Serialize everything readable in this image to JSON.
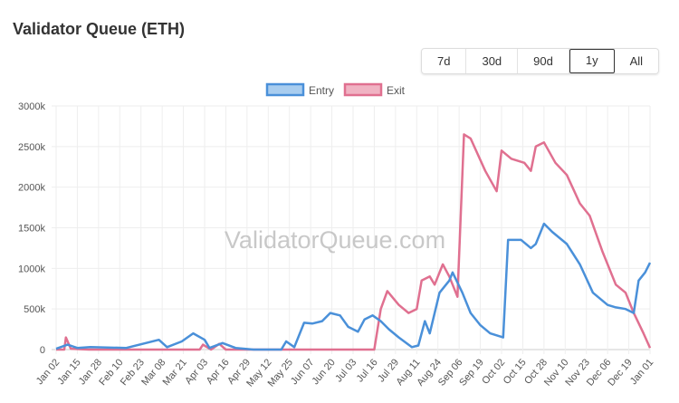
{
  "title": "Validator Queue (ETH)",
  "range_buttons": [
    {
      "label": "7d"
    },
    {
      "label": "30d"
    },
    {
      "label": "90d"
    },
    {
      "label": "1y",
      "active": true
    },
    {
      "label": "All"
    }
  ],
  "watermark": "ValidatorQueue.com",
  "chart_data": {
    "type": "line",
    "ylim": [
      0,
      3000
    ],
    "y_unit_suffix": "k",
    "y_ticks": [
      "0",
      "500k",
      "1000k",
      "1500k",
      "2000k",
      "2500k",
      "3000k"
    ],
    "x_ticks": [
      "Jan 02",
      "Jan 15",
      "Jan 28",
      "Feb 10",
      "Feb 23",
      "Mar 08",
      "Mar 21",
      "Apr 03",
      "Apr 16",
      "Apr 29",
      "May 12",
      "May 25",
      "Jun 07",
      "Jun 20",
      "Jul 03",
      "Jul 16",
      "Jul 29",
      "Aug 11",
      "Aug 24",
      "Sep 06",
      "Sep 19",
      "Oct 02",
      "Oct 15",
      "Oct 28",
      "Nov 10",
      "Nov 23",
      "Dec 06",
      "Dec 19",
      "Jan 01"
    ],
    "grid": true,
    "legend": "top",
    "series": [
      {
        "name": "Entry",
        "color": "#4a90d9",
        "fill": "#a9cdef",
        "points": [
          [
            "Jan 02",
            10
          ],
          [
            "Jan 09",
            60
          ],
          [
            "Jan 15",
            20
          ],
          [
            "Jan 23",
            30
          ],
          [
            "Feb 14",
            20
          ],
          [
            "Mar 06",
            120
          ],
          [
            "Mar 11",
            30
          ],
          [
            "Mar 20",
            100
          ],
          [
            "Mar 27",
            200
          ],
          [
            "Apr 03",
            120
          ],
          [
            "Apr 06",
            20
          ],
          [
            "Apr 14",
            80
          ],
          [
            "Apr 22",
            20
          ],
          [
            "May 03",
            0
          ],
          [
            "May 20",
            0
          ],
          [
            "May 23",
            100
          ],
          [
            "May 28",
            30
          ],
          [
            "Jun 03",
            330
          ],
          [
            "Jun 08",
            320
          ],
          [
            "Jun 14",
            350
          ],
          [
            "Jun 19",
            450
          ],
          [
            "Jun 25",
            420
          ],
          [
            "Jun 30",
            280
          ],
          [
            "Jul 06",
            220
          ],
          [
            "Jul 10",
            370
          ],
          [
            "Jul 15",
            420
          ],
          [
            "Jul 20",
            350
          ],
          [
            "Jul 25",
            250
          ],
          [
            "Jul 31",
            150
          ],
          [
            "Aug 08",
            30
          ],
          [
            "Aug 12",
            50
          ],
          [
            "Aug 16",
            350
          ],
          [
            "Aug 19",
            200
          ],
          [
            "Aug 25",
            700
          ],
          [
            "Aug 31",
            850
          ],
          [
            "Sep 02",
            950
          ],
          [
            "Sep 08",
            700
          ],
          [
            "Sep 13",
            450
          ],
          [
            "Sep 19",
            300
          ],
          [
            "Sep 25",
            200
          ],
          [
            "Oct 03",
            150
          ],
          [
            "Oct 06",
            1350
          ],
          [
            "Oct 14",
            1350
          ],
          [
            "Oct 20",
            1250
          ],
          [
            "Oct 23",
            1300
          ],
          [
            "Oct 28",
            1550
          ],
          [
            "Nov 02",
            1450
          ],
          [
            "Nov 11",
            1300
          ],
          [
            "Nov 19",
            1050
          ],
          [
            "Nov 27",
            700
          ],
          [
            "Dec 06",
            550
          ],
          [
            "Dec 11",
            520
          ],
          [
            "Dec 17",
            500
          ],
          [
            "Dec 22",
            450
          ],
          [
            "Dec 25",
            850
          ],
          [
            "Dec 29",
            950
          ],
          [
            "Jan 01",
            1070
          ]
        ]
      },
      {
        "name": "Exit",
        "color": "#e07090",
        "fill": "#f0b3c3",
        "points": [
          [
            "Jan 02",
            0
          ],
          [
            "Jan 07",
            0
          ],
          [
            "Jan 08",
            150
          ],
          [
            "Jan 11",
            10
          ],
          [
            "Jan 22",
            0
          ],
          [
            "Mar 03",
            0
          ],
          [
            "Mar 31",
            0
          ],
          [
            "Apr 02",
            60
          ],
          [
            "Apr 07",
            0
          ],
          [
            "Apr 12",
            70
          ],
          [
            "Apr 16",
            0
          ],
          [
            "Jul 16",
            0
          ],
          [
            "Jul 20",
            500
          ],
          [
            "Jul 24",
            720
          ],
          [
            "Jul 31",
            550
          ],
          [
            "Aug 06",
            450
          ],
          [
            "Aug 11",
            500
          ],
          [
            "Aug 14",
            850
          ],
          [
            "Aug 19",
            900
          ],
          [
            "Aug 22",
            800
          ],
          [
            "Aug 27",
            1050
          ],
          [
            "Aug 31",
            900
          ],
          [
            "Sep 05",
            650
          ],
          [
            "Sep 09",
            2650
          ],
          [
            "Sep 13",
            2600
          ],
          [
            "Sep 22",
            2200
          ],
          [
            "Sep 29",
            1950
          ],
          [
            "Oct 02",
            2450
          ],
          [
            "Oct 08",
            2350
          ],
          [
            "Oct 16",
            2300
          ],
          [
            "Oct 20",
            2200
          ],
          [
            "Oct 23",
            2500
          ],
          [
            "Oct 28",
            2550
          ],
          [
            "Nov 04",
            2300
          ],
          [
            "Nov 11",
            2150
          ],
          [
            "Nov 19",
            1800
          ],
          [
            "Nov 25",
            1650
          ],
          [
            "Dec 03",
            1200
          ],
          [
            "Dec 11",
            800
          ],
          [
            "Dec 17",
            700
          ],
          [
            "Dec 22",
            450
          ],
          [
            "Dec 28",
            200
          ],
          [
            "Jan 01",
            20
          ]
        ]
      }
    ]
  }
}
